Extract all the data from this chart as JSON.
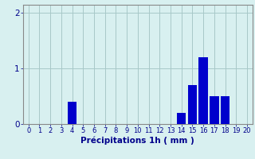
{
  "hours": [
    0,
    1,
    2,
    3,
    4,
    5,
    6,
    7,
    8,
    9,
    10,
    11,
    12,
    13,
    14,
    15,
    16,
    17,
    18,
    19,
    20
  ],
  "values": [
    0,
    0,
    0,
    0,
    0.4,
    0,
    0,
    0,
    0,
    0,
    0,
    0,
    0,
    0,
    0.2,
    0.7,
    1.2,
    0.5,
    0.5,
    0,
    0
  ],
  "bar_color": "#0000cc",
  "background_color": "#d8f0f0",
  "grid_color": "#a8c8c8",
  "axis_label_color": "#00008b",
  "tick_color": "#00008b",
  "xlabel": "Précipitations 1h ( mm )",
  "ylim": [
    0,
    2.15
  ],
  "yticks": [
    0,
    1,
    2
  ],
  "xlim": [
    -0.5,
    20.5
  ],
  "xlabel_fontsize": 7.5,
  "tick_fontsize": 6.0,
  "spine_color": "#888888"
}
